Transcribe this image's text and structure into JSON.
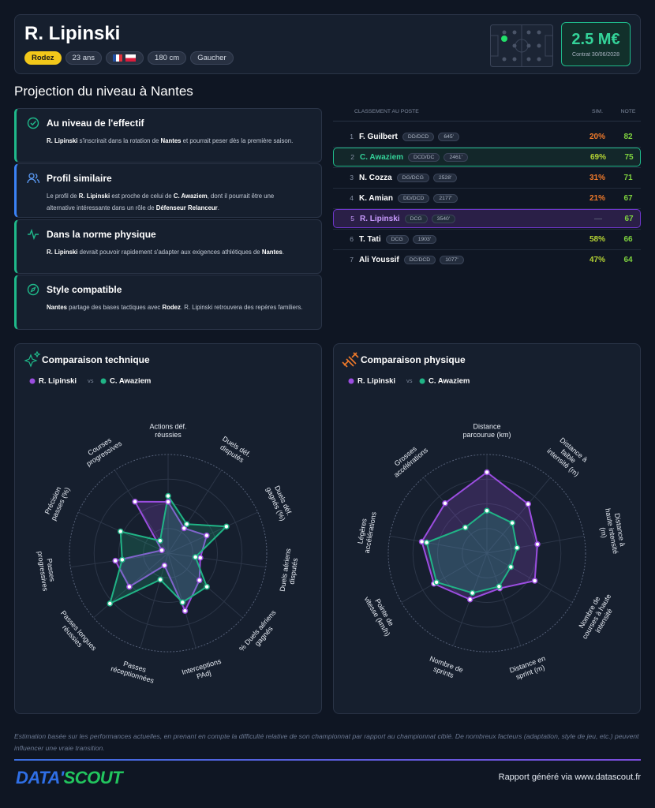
{
  "header": {
    "name": "R. Lipinski",
    "club": "Rodez",
    "age": "23 ans",
    "height": "180 cm",
    "foot": "Gaucher",
    "market_value": "2.5 M€",
    "contract": "Contrat 30/06/2028"
  },
  "section_title": "Projection du niveau à Nantes",
  "cards": [
    {
      "title": "Au niveau de l'effectif",
      "body": [
        "R. Lipinski",
        " s'inscrirait dans la rotation de ",
        "Nantes",
        " et pourrait peser dès la première saison."
      ]
    },
    {
      "title": "Profil similaire",
      "body": [
        "Le profil de ",
        "R. Lipinski",
        " est proche de celui de ",
        "C. Awaziem",
        ", dont il pourrait être une alternative intéressante dans un rôle de ",
        "Défenseur Relanceur",
        "."
      ]
    },
    {
      "title": "Dans la norme physique",
      "body": [
        "R. Lipinski",
        " devrait pouvoir rapidement s'adapter aux exigences athlétiques de ",
        "Nantes",
        "."
      ]
    },
    {
      "title": "Style compatible",
      "body": [
        "Nantes",
        " partage des bases tactiques avec ",
        "Rodez",
        ". R. Lipinski retrouvera des repères familiers."
      ]
    }
  ],
  "ranking": {
    "header": [
      "CLASSEMENT AU POSTE",
      "SIM.",
      "NOTE"
    ],
    "rows": [
      [
        "1",
        "F. Guilbert",
        "DD/DCD",
        "645'",
        "20%",
        "82"
      ],
      [
        "2",
        "C. Awaziem",
        "DCD/DC",
        "2461'",
        "69%",
        "75"
      ],
      [
        "3",
        "N. Cozza",
        "DG/DCG",
        "2528'",
        "31%",
        "71"
      ],
      [
        "4",
        "K. Amian",
        "DD/DCD",
        "2177'",
        "21%",
        "67"
      ],
      [
        "5",
        "R. Lipinski",
        "DCG",
        "3540'",
        "—",
        "67"
      ],
      [
        "6",
        "T. Tati",
        "DCG",
        "1903'",
        "58%",
        "66"
      ],
      [
        "7",
        "Ali Youssif",
        "DC/DCD",
        "1077'",
        "47%",
        "64"
      ]
    ]
  },
  "chart_data": [
    {
      "type": "radar",
      "title": "Comparaison technique",
      "vs": "vs",
      "categories": [
        "Actions déf. réussies",
        "Duels déf. disputés",
        "Duels déf. gagnés (%)",
        "Duels aériens disputés",
        "% Duels aériens gagnés",
        "Interceptions PAdj",
        "Passes réceptionnées",
        "Passes longues réussies",
        "Passes progressives",
        "Précision passes (%)",
        "Courses progressives"
      ],
      "rlim": [
        0,
        100
      ],
      "rticks": [
        25,
        50,
        75,
        100
      ],
      "series": [
        {
          "name": "R. Lipinski",
          "color": "#9b4de0",
          "values": [
            52,
            30,
            43,
            33,
            42,
            61,
            13,
            52,
            54,
            7,
            62
          ]
        },
        {
          "name": "C. Awaziem",
          "color": "#20b486",
          "values": [
            58,
            35,
            65,
            28,
            52,
            52,
            28,
            78,
            47,
            53,
            15
          ]
        }
      ]
    },
    {
      "type": "radar",
      "title": "Comparaison physique",
      "vs": "vs",
      "categories": [
        "Distance parcourue (km)",
        "Distance à faible intensité (m)",
        "Distance à haute intensité (m)",
        "Nombre de courses à haute intensité",
        "Distance en sprint (m)",
        "Nombre de sprints",
        "Pointe de vitesse (km/h)",
        "Légères accélérations",
        "Grosses accélérations"
      ],
      "rlim": [
        0,
        100
      ],
      "rticks": [
        25,
        50,
        75,
        100
      ],
      "series": [
        {
          "name": "R. Lipinski",
          "color": "#9b4de0",
          "values": [
            82,
            65,
            52,
            56,
            38,
            50,
            62,
            67,
            66
          ]
        },
        {
          "name": "C. Awaziem",
          "color": "#20b486",
          "values": [
            43,
            40,
            31,
            28,
            36,
            43,
            59,
            62,
            34
          ]
        }
      ]
    }
  ],
  "footer": {
    "note": "Estimation basée sur les performances actuelles, en prenant en compte la difficulté relative de son championnat par rapport au championnat ciblé. De nombreux facteurs (adaptation, style de jeu, etc.) peuvent influencer une vraie transition.",
    "logo_a": "DATA'",
    "logo_b": "SCOUT",
    "credit": "Rapport généré via www.datascout.fr"
  }
}
